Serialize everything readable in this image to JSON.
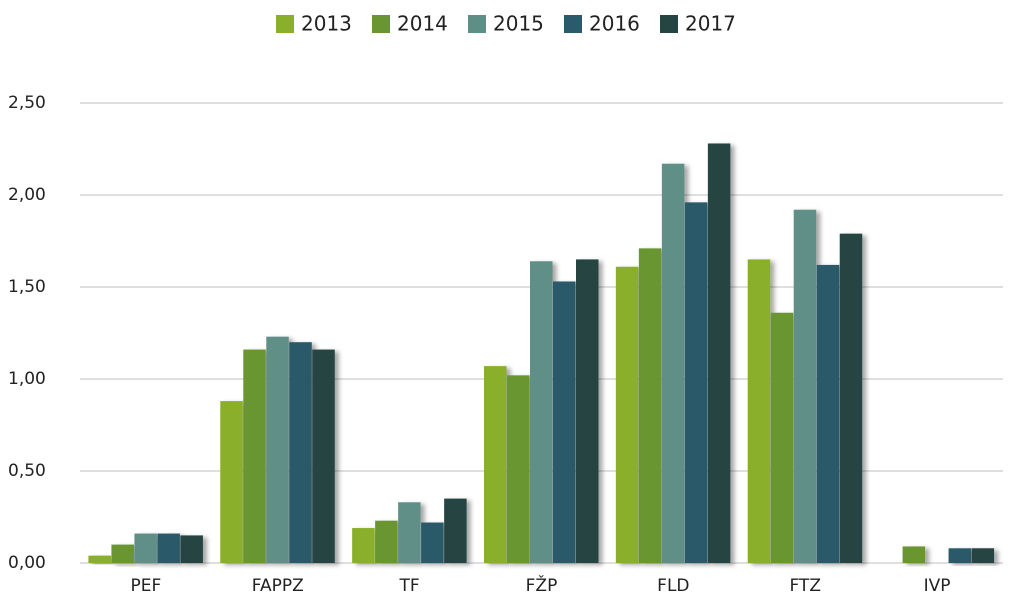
{
  "chart_data": {
    "type": "bar",
    "categories": [
      "PEF",
      "FAPPZ",
      "TF",
      "FŽP",
      "FLD",
      "FTZ",
      "IVP"
    ],
    "series": [
      {
        "name": "2013",
        "color": "#8aaf2b",
        "values": [
          0.04,
          0.88,
          0.19,
          1.07,
          1.61,
          1.65,
          null
        ]
      },
      {
        "name": "2014",
        "color": "#6a9632",
        "values": [
          0.1,
          1.16,
          0.23,
          1.02,
          1.71,
          1.36,
          0.09
        ]
      },
      {
        "name": "2015",
        "color": "#5e8f87",
        "values": [
          0.16,
          1.23,
          0.33,
          1.64,
          2.17,
          1.92,
          null
        ]
      },
      {
        "name": "2016",
        "color": "#2a5a6b",
        "values": [
          0.16,
          1.2,
          0.22,
          1.53,
          1.96,
          1.62,
          0.08
        ]
      },
      {
        "name": "2017",
        "color": "#254542",
        "values": [
          0.15,
          1.16,
          0.35,
          1.65,
          2.28,
          1.79,
          0.08
        ]
      }
    ],
    "ylim": [
      0,
      2.5
    ],
    "yticks": [
      {
        "value": 0,
        "label": "0,00"
      },
      {
        "value": 0.5,
        "label": "0,50"
      },
      {
        "value": 1,
        "label": "1,00"
      },
      {
        "value": 1.5,
        "label": "1,50"
      },
      {
        "value": 2,
        "label": "2,00"
      },
      {
        "value": 2.5,
        "label": "2,50"
      }
    ],
    "grid": true,
    "legend": "top"
  }
}
